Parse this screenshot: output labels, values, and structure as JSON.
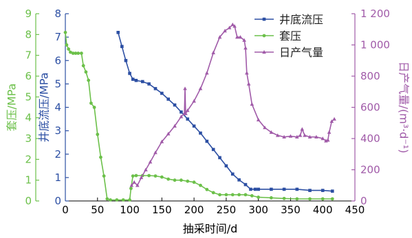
{
  "chart_data": {
    "type": "line",
    "xlabel": "抽采时间/d",
    "x_axis": {
      "range": [
        0,
        450
      ],
      "ticks": [
        "0",
        "50",
        "100",
        "150",
        "200",
        "250",
        "300",
        "350",
        "400",
        "450"
      ]
    },
    "y_axes": [
      {
        "id": "casing",
        "label": "套压/MPa",
        "color": "#6cc04a",
        "range": [
          0,
          9
        ],
        "ticks": [
          "0",
          "1",
          "2",
          "3",
          "4",
          "5",
          "6",
          "7",
          "8",
          "9"
        ]
      },
      {
        "id": "bhp",
        "label": "井底流压/MPa",
        "color": "#2c4fa3",
        "range": [
          0,
          8
        ],
        "ticks": [
          "0",
          "1",
          "2",
          "3",
          "4",
          "5",
          "6",
          "7",
          "8"
        ]
      },
      {
        "id": "gas",
        "label": "日产气量/(m³·d⁻¹)",
        "color": "#a05aa8",
        "range": [
          0,
          1200
        ],
        "ticks": [
          "0",
          "200",
          "400",
          "600",
          "800",
          "1 000",
          "1 200"
        ]
      }
    ],
    "legend": {
      "position": "top-right",
      "entries": [
        "井底流压",
        "套压",
        "日产气量"
      ]
    },
    "series": [
      {
        "name": "井底流压",
        "axis": "bhp",
        "color": "#2c4fa3",
        "marker": "square",
        "x": [
          82,
          88,
          94,
          100,
          105,
          110,
          120,
          130,
          140,
          150,
          160,
          170,
          180,
          190,
          200,
          210,
          220,
          230,
          240,
          250,
          260,
          270,
          280,
          288,
          295,
          300,
          320,
          340,
          360,
          380,
          400,
          415
        ],
        "y": [
          7.2,
          6.6,
          6.0,
          5.45,
          5.2,
          5.15,
          5.1,
          5.0,
          4.8,
          4.6,
          4.35,
          4.1,
          3.8,
          3.5,
          3.2,
          2.9,
          2.55,
          2.2,
          1.85,
          1.5,
          1.15,
          0.9,
          0.7,
          0.5,
          0.5,
          0.5,
          0.5,
          0.5,
          0.5,
          0.45,
          0.45,
          0.42
        ]
      },
      {
        "name": "套压",
        "axis": "casing",
        "color": "#6cc04a",
        "marker": "circle",
        "x": [
          0,
          2,
          5,
          8,
          12,
          16,
          20,
          25,
          28,
          32,
          36,
          40,
          45,
          50,
          55,
          60,
          65,
          70,
          80,
          90,
          100,
          102,
          105,
          110,
          120,
          130,
          140,
          150,
          160,
          170,
          180,
          190,
          200,
          210,
          220,
          230,
          240,
          250,
          260,
          270,
          280,
          290,
          300,
          320,
          340,
          360,
          380,
          400,
          415
        ],
        "y": [
          8.1,
          7.5,
          7.3,
          7.15,
          7.1,
          7.1,
          7.1,
          7.1,
          6.5,
          6.2,
          5.8,
          4.7,
          4.5,
          3.2,
          2.1,
          1.2,
          0.1,
          0.05,
          0.05,
          0.05,
          0.05,
          0.6,
          1.2,
          1.22,
          1.22,
          1.22,
          1.2,
          1.15,
          1.05,
          1.0,
          1.0,
          0.95,
          0.9,
          0.75,
          0.55,
          0.4,
          0.3,
          0.3,
          0.3,
          0.3,
          0.3,
          0.25,
          0.18,
          0.15,
          0.12,
          0.1,
          0.1,
          0.1,
          0.1
        ]
      },
      {
        "name": "日产气量",
        "axis": "gas",
        "color": "#a05aa8",
        "marker": "triangle",
        "x": [
          103,
          107,
          112,
          118,
          125,
          132,
          140,
          150,
          160,
          170,
          180,
          185,
          186,
          187,
          190,
          200,
          210,
          220,
          230,
          240,
          248,
          255,
          260,
          263,
          267,
          272,
          278,
          280,
          282,
          285,
          290,
          300,
          310,
          320,
          330,
          340,
          350,
          360,
          365,
          368,
          372,
          380,
          390,
          400,
          405,
          408,
          410,
          414,
          418
        ],
        "y": [
          100,
          120,
          100,
          150,
          200,
          250,
          310,
          380,
          430,
          480,
          540,
          560,
          720,
          560,
          580,
          640,
          720,
          820,
          950,
          1050,
          1090,
          1110,
          1130,
          1120,
          1050,
          1050,
          1030,
          980,
          820,
          750,
          620,
          520,
          470,
          440,
          420,
          410,
          415,
          410,
          420,
          460,
          420,
          410,
          410,
          400,
          385,
          390,
          440,
          510,
          525
        ]
      }
    ]
  }
}
